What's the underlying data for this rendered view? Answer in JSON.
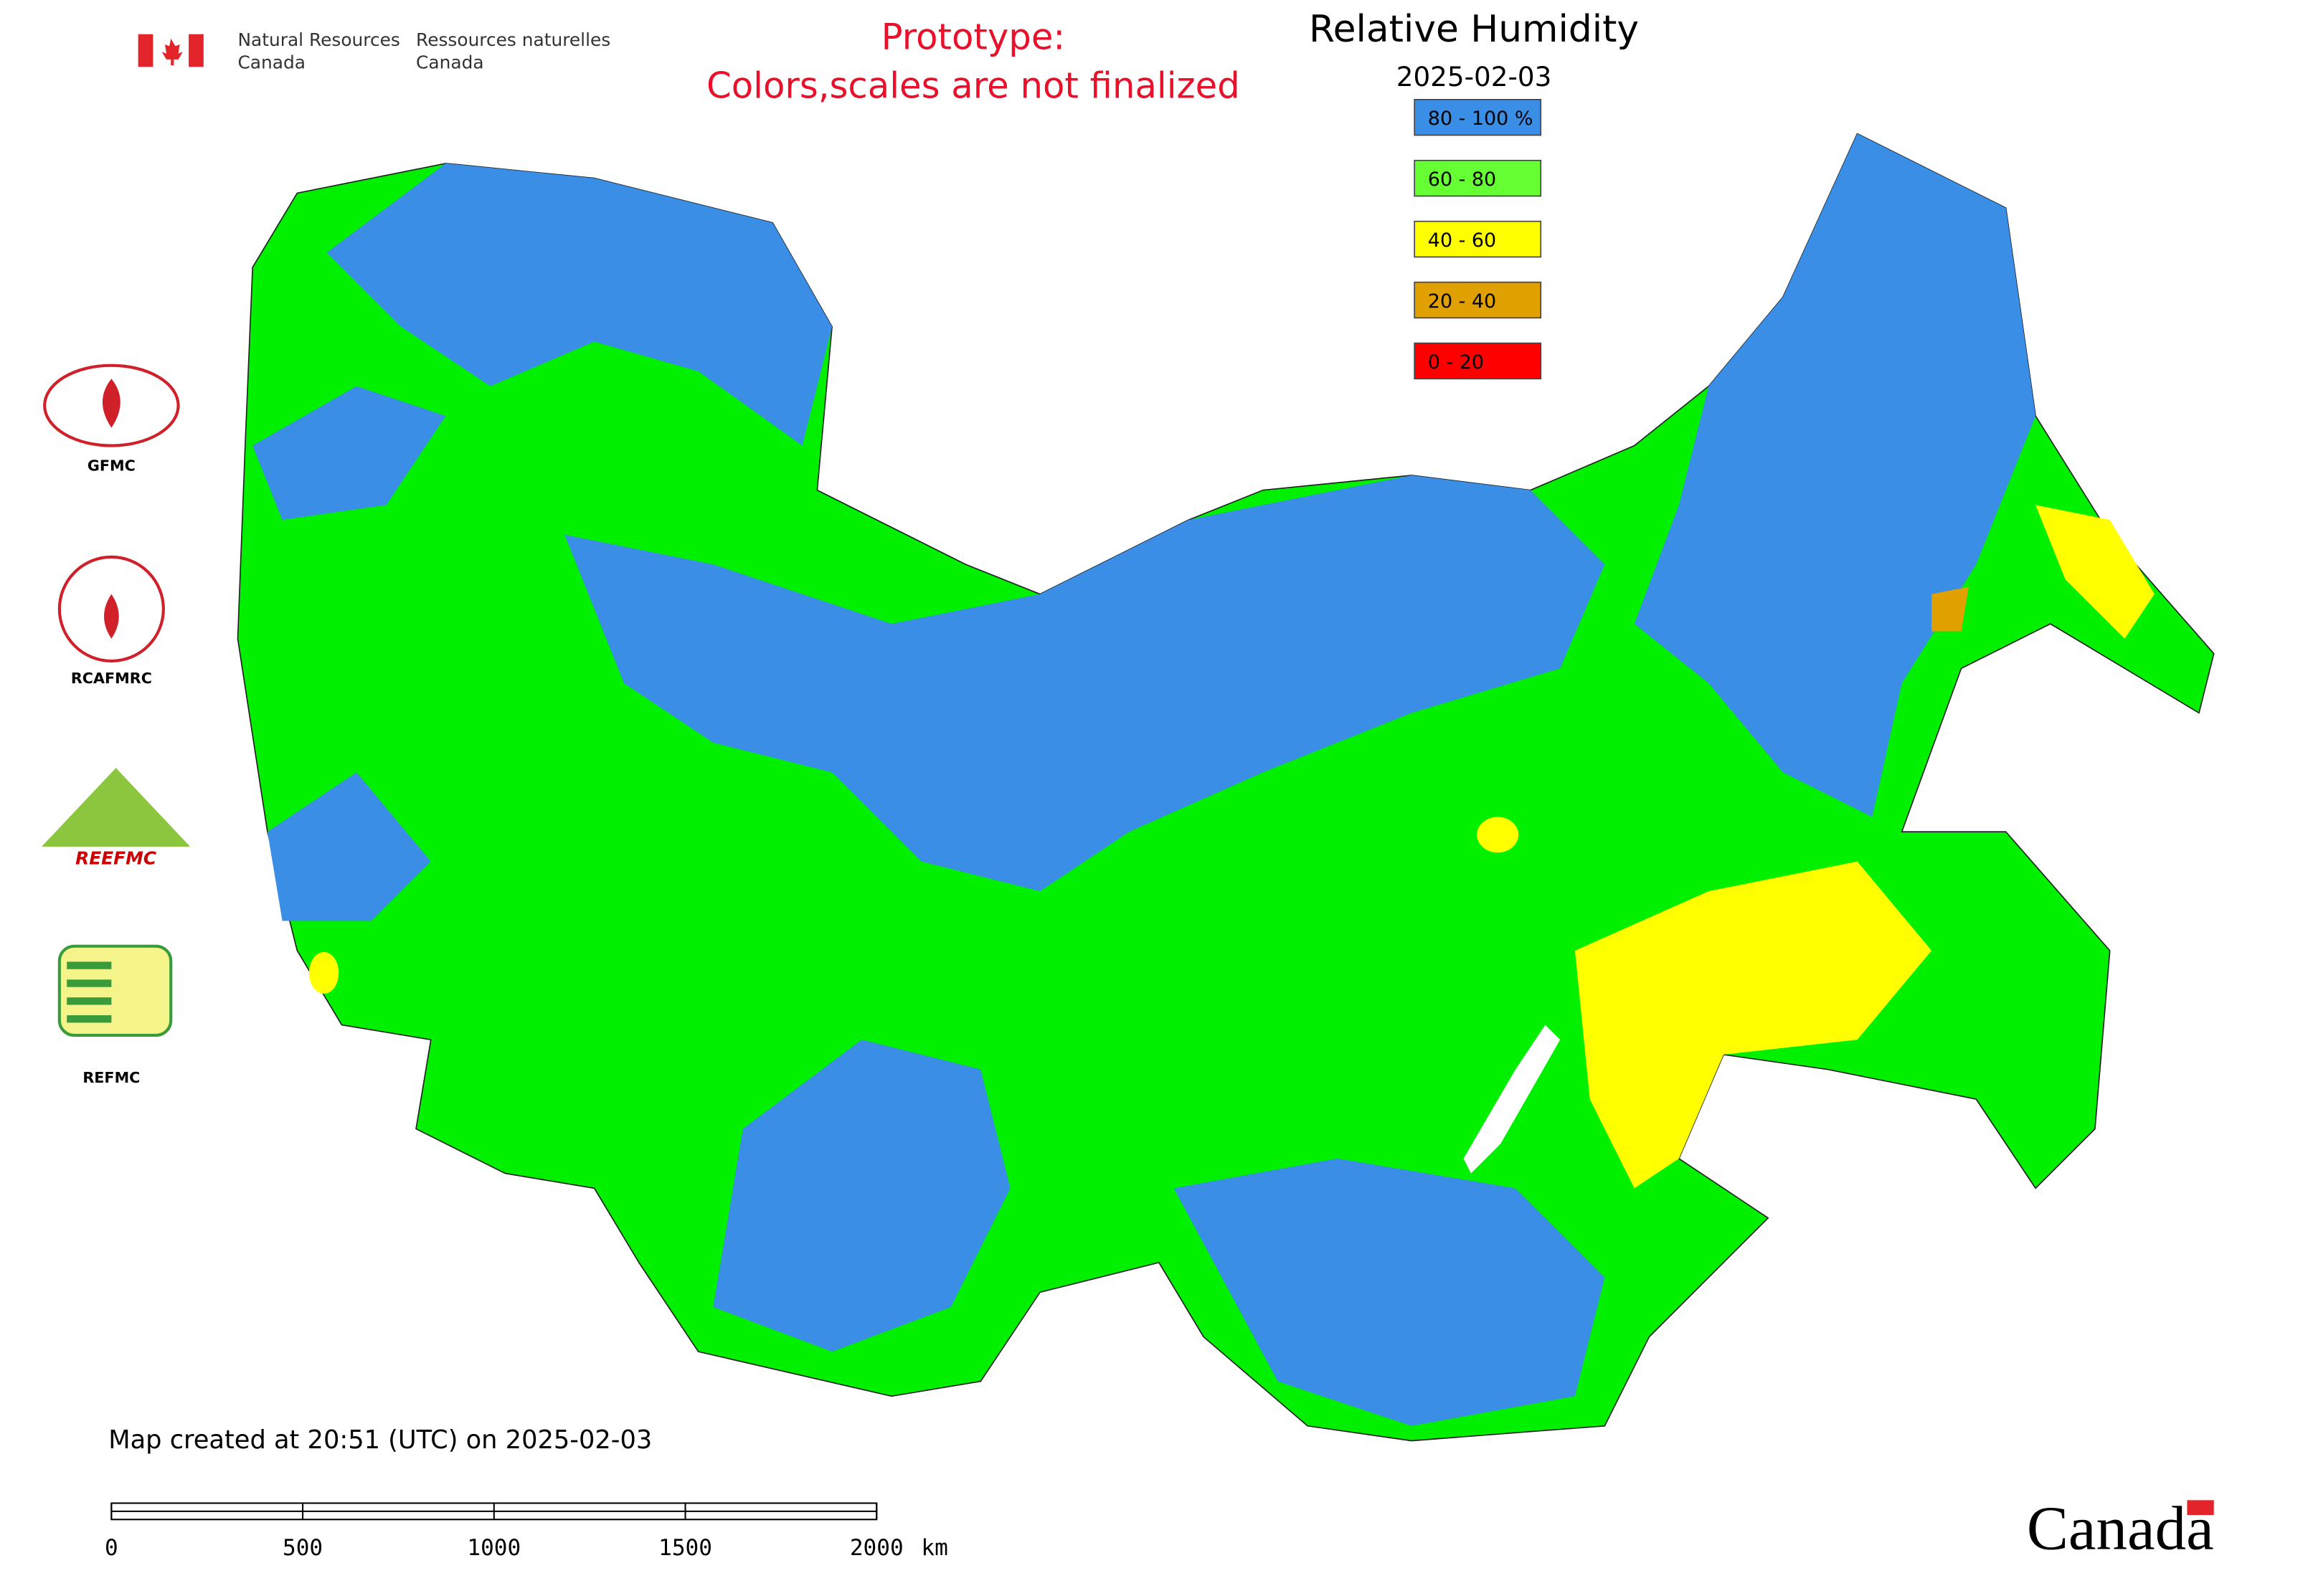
{
  "header": {
    "dept_en": [
      "Natural Resources",
      "Canada"
    ],
    "dept_fr": [
      "Ressources naturelles",
      "Canada"
    ]
  },
  "notice": [
    "Prototype:",
    "Colors,scales are not finalized"
  ],
  "title": "Relative Humidity",
  "date": "2025-02-03",
  "legend": [
    {
      "label": "80 - 100 %",
      "color": "#3a8ee6"
    },
    {
      "label": "60 - 80",
      "color": "#66ff33"
    },
    {
      "label": "40 - 60",
      "color": "#ffff00"
    },
    {
      "label": "20 - 40",
      "color": "#e0a000"
    },
    {
      "label": "0 - 20",
      "color": "#ff0000"
    }
  ],
  "logos": {
    "gfmc": "GFMC",
    "rcafmrc": "RCAFMRC",
    "reefmc": "REEFMC",
    "refmc": "REFMC"
  },
  "footer": "Map created at 20:51 (UTC) on 2025-02-03",
  "scale_bar": {
    "ticks": [
      0,
      500,
      1000,
      1500,
      2000
    ],
    "unit": "km"
  },
  "wordmark": "Canada"
}
